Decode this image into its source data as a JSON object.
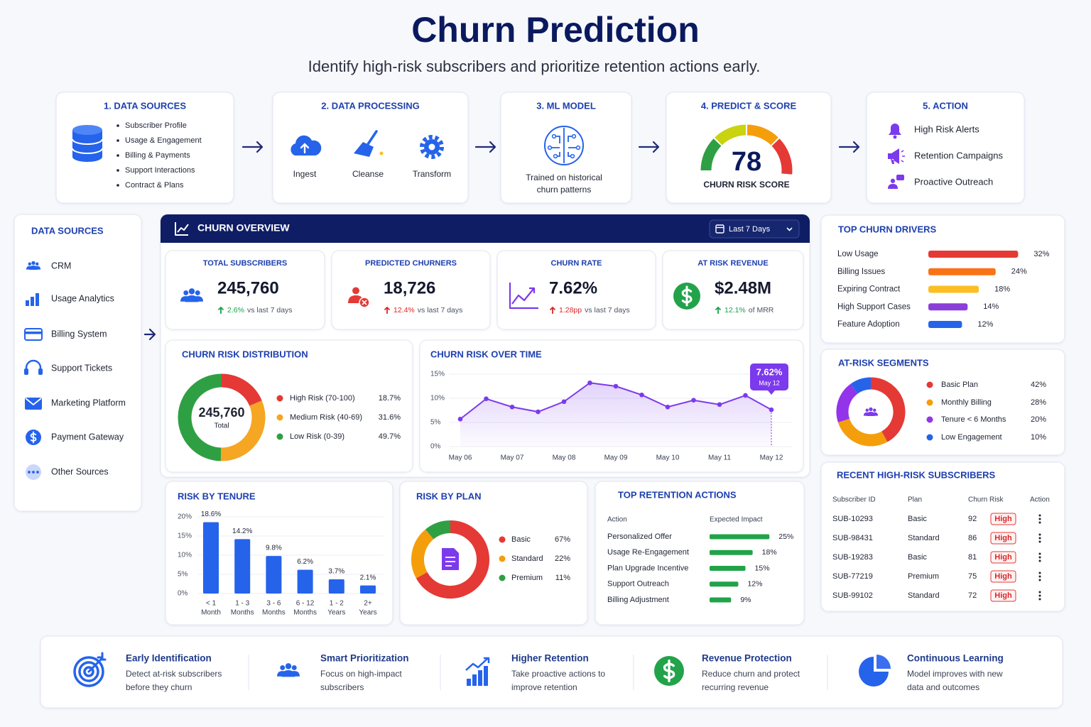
{
  "header": {
    "title": "Churn Prediction",
    "subtitle": "Identify high-risk subscribers and prioritize retention actions early."
  },
  "pipeline": {
    "sources": {
      "title": "1. DATA SOURCES",
      "items": [
        "Subscriber Profile",
        "Usage & Engagement",
        "Billing & Payments",
        "Support Interactions",
        "Contract & Plans"
      ]
    },
    "processing": {
      "title": "2. DATA PROCESSING",
      "items": [
        "Ingest",
        "Cleanse",
        "Transform"
      ]
    },
    "model": {
      "title": "3. ML MODEL",
      "caption": [
        "Trained on historical",
        "churn patterns"
      ]
    },
    "score": {
      "title": "4. PREDICT & SCORE",
      "value": 78,
      "caption": "CHURN RISK SCORE"
    },
    "action": {
      "title": "5. ACTION",
      "items": [
        "High Risk Alerts",
        "Retention Campaigns",
        "Proactive Outreach"
      ]
    }
  },
  "data_sources": {
    "title": "DATA SOURCES",
    "items": [
      "CRM",
      "Usage Analytics",
      "Billing System",
      "Support Tickets",
      "Marketing Platform",
      "Payment Gateway",
      "Other Sources"
    ]
  },
  "overview": {
    "title": "CHURN OVERVIEW",
    "period": "Last 7 Days"
  },
  "kpis": [
    {
      "label": "TOTAL SUBSCRIBERS",
      "value": "245,760",
      "change": "2.6%",
      "note": "vs last 7 days"
    },
    {
      "label": "PREDICTED CHURNERS",
      "value": "18,726",
      "change": "12.4%",
      "note": "vs last 7 days"
    },
    {
      "label": "CHURN RATE",
      "value": "7.62%",
      "change": "1.28pp",
      "note": "vs last 7 days"
    },
    {
      "label": "AT RISK REVENUE",
      "value": "$2.48M",
      "change": "12.1%",
      "note": "of MRR"
    }
  ],
  "charts": {
    "distribution": {
      "type": "donut",
      "title": "CHURN RISK DISTRIBUTION",
      "total": "245,760",
      "total_label": "Total",
      "categories": [
        "High Risk (70-100)",
        "Medium Risk (40-69)",
        "Low Risk (0-39)"
      ],
      "values": [
        18.7,
        31.6,
        49.7
      ],
      "value_labels": [
        "18.7%",
        "31.6%",
        "49.7%"
      ],
      "colors": [
        "#e53935",
        "#f5a623",
        "#2ea043"
      ]
    },
    "over_time": {
      "type": "line",
      "title": "CHURN RISK OVER TIME",
      "categories": [
        "May 06",
        null,
        "May 07",
        null,
        "May 08",
        null,
        "May 09",
        null,
        "May 10",
        null,
        "May 11",
        null,
        "May 12"
      ],
      "values": [
        5.7,
        9.9,
        8.2,
        7.2,
        9.3,
        13.2,
        12.5,
        10.7,
        8.2,
        9.6,
        8.7,
        10.6,
        7.62
      ],
      "color": "#7c3aed",
      "ylim": [
        0,
        15
      ],
      "yticks": [
        {
          "value": 0,
          "label": "0%"
        },
        {
          "value": 5,
          "label": "5%"
        },
        {
          "value": 10,
          "label": "10%"
        },
        {
          "value": 15,
          "label": "15%"
        }
      ],
      "grid": true,
      "annotation": "7.62%"
    },
    "tenure": {
      "type": "bar",
      "title": "RISK BY TENURE",
      "categories": [
        [
          "< 1",
          "Month"
        ],
        [
          "1 - 3",
          "Months"
        ],
        [
          "3 - 6",
          "Months"
        ],
        [
          "6 - 12",
          "Months"
        ],
        [
          "1 - 2",
          "Years"
        ],
        [
          "2+",
          "Years"
        ]
      ],
      "values": [
        18.6,
        14.2,
        9.8,
        6.2,
        3.7,
        2.1
      ],
      "value_labels": [
        "18.6%",
        "14.2%",
        "9.8%",
        "6.2%",
        "3.7%",
        "2.1%"
      ],
      "color": "#2563eb",
      "ylim": [
        0,
        20
      ],
      "yticks": [
        {
          "value": 0,
          "label": "0%"
        },
        {
          "value": 5,
          "label": "5%"
        },
        {
          "value": 10,
          "label": "10%"
        },
        {
          "value": 15,
          "label": "15%"
        },
        {
          "value": 20,
          "label": "20%"
        }
      ],
      "grid": true
    },
    "plan": {
      "type": "donut",
      "title": "RISK BY PLAN",
      "categories": [
        "Basic",
        "Standard",
        "Premium"
      ],
      "values": [
        67,
        22,
        11
      ],
      "value_labels": [
        "67%",
        "22%",
        "11%"
      ],
      "colors": [
        "#e53935",
        "#f59e0b",
        "#2ea043"
      ]
    },
    "actions": {
      "type": "hbar",
      "title": "TOP RETENTION ACTIONS",
      "headers": [
        "Action",
        "Expected Impact"
      ],
      "categories": [
        "Personalized Offer",
        "Usage Re-Engagement",
        "Plan Upgrade Incentive",
        "Support Outreach",
        "Billing Adjustment"
      ],
      "values": [
        25,
        18,
        15,
        12,
        9
      ],
      "value_labels": [
        "25%",
        "18%",
        "15%",
        "12%",
        "9%"
      ],
      "color": "#22a34a"
    },
    "drivers": {
      "type": "hbar",
      "title": "TOP CHURN DRIVERS",
      "categories": [
        "Low Usage",
        "Billing Issues",
        "Expiring Contract",
        "High Support Cases",
        "Feature Adoption"
      ],
      "values": [
        32,
        24,
        18,
        14,
        12
      ],
      "value_labels": [
        "32%",
        "24%",
        "18%",
        "14%",
        "12%"
      ],
      "colors": [
        "#e53935",
        "#f97316",
        "#fbbf24",
        "#8b3fd9",
        "#2563eb"
      ]
    },
    "segments": {
      "type": "donut",
      "title": "AT-RISK SEGMENTS",
      "categories": [
        "Basic Plan",
        "Monthly Billing",
        "Tenure < 6 Months",
        "Low Engagement"
      ],
      "values": [
        42,
        28,
        20,
        10
      ],
      "value_labels": [
        "42%",
        "28%",
        "20%",
        "10%"
      ],
      "colors": [
        "#e53935",
        "#f59e0b",
        "#9333ea",
        "#2563eb"
      ]
    }
  },
  "subscribers": {
    "title": "RECENT HIGH-RISK SUBSCRIBERS",
    "headers": [
      "Subscriber ID",
      "Plan",
      "Churn Risk",
      "Action"
    ],
    "rows": [
      [
        "SUB-10293",
        "Basic",
        92,
        "High"
      ],
      [
        "SUB-98431",
        "Standard",
        86,
        "High"
      ],
      [
        "SUB-19283",
        "Basic",
        81,
        "High"
      ],
      [
        "SUB-77219",
        "Premium",
        75,
        "High"
      ],
      [
        "SUB-99102",
        "Standard",
        72,
        "High"
      ]
    ]
  },
  "benefits": [
    {
      "title": "Early Identification",
      "text": [
        "Detect at-risk subscribers",
        "before they churn"
      ]
    },
    {
      "title": "Smart Prioritization",
      "text": [
        "Focus on high-impact",
        "subscribers"
      ]
    },
    {
      "title": "Higher Retention",
      "text": [
        "Take proactive actions to",
        "improve retention"
      ]
    },
    {
      "title": "Revenue Protection",
      "text": [
        "Reduce churn and protect",
        "recurring revenue"
      ]
    },
    {
      "title": "Continuous Learning",
      "text": [
        "Model improves with new",
        "data and outcomes"
      ]
    }
  ]
}
